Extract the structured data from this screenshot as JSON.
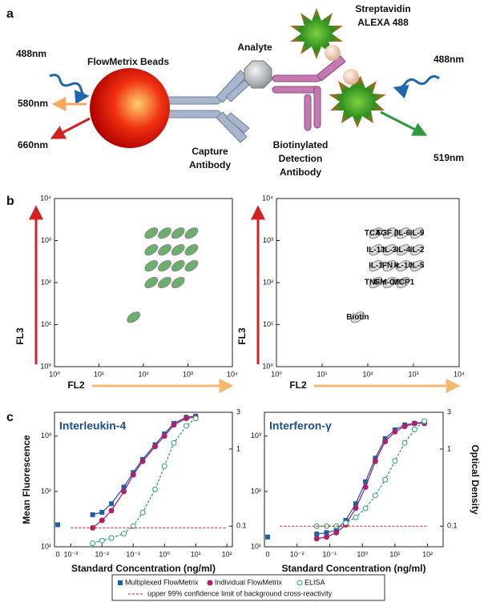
{
  "panel_a": {
    "label": "a",
    "laser_left": "488nm",
    "beads": "FlowMetrix Beads",
    "emit_580": "580nm",
    "emit_660": "660nm",
    "capture": [
      "Capture",
      "Antibody"
    ],
    "analyte": "Analyte",
    "streptavidin": [
      "Streptavidin",
      "ALEXA 488"
    ],
    "detection": [
      "Biotinylated",
      "Detection",
      "Antibody"
    ],
    "laser_right": "488nm",
    "emit_519": "519nm"
  },
  "panel_b": {
    "label": "b"
  },
  "panel_c": {
    "label": "c"
  },
  "chart_data": [
    {
      "type": "scatter",
      "xlabel": "FL2",
      "ylabel": "FL3",
      "xscale": "log",
      "yscale": "log",
      "color": "#2e8b2e",
      "x": [
        150,
        300,
        600,
        1200,
        150,
        300,
        600,
        1200,
        150,
        300,
        600,
        1200,
        150,
        300,
        600,
        60
      ],
      "y": [
        1500,
        1500,
        1500,
        1500,
        600,
        600,
        600,
        600,
        250,
        250,
        250,
        250,
        100,
        100,
        100,
        15
      ],
      "xlim": [
        1,
        10000
      ],
      "ylim": [
        1,
        10000
      ],
      "xticks": [
        {
          "value": 1,
          "label": "10⁰"
        },
        {
          "value": 10,
          "label": "10¹"
        },
        {
          "value": 100,
          "label": "10²"
        },
        {
          "value": 1000,
          "label": "10³"
        },
        {
          "value": 10000,
          "label": "10⁴"
        }
      ],
      "yticks": [
        {
          "value": 1,
          "label": "10⁰"
        },
        {
          "value": 10,
          "label": "10¹"
        },
        {
          "value": 100,
          "label": "10²"
        },
        {
          "value": 1000,
          "label": "10³"
        },
        {
          "value": 10000,
          "label": "10⁴"
        }
      ]
    },
    {
      "type": "scatter",
      "xlabel": "FL2",
      "ylabel": "FL3",
      "xscale": "log",
      "yscale": "log",
      "color": "#cccccc",
      "x": [
        150,
        300,
        600,
        1200,
        150,
        300,
        600,
        1200,
        150,
        300,
        600,
        1200,
        150,
        300,
        600,
        60
      ],
      "y": [
        1500,
        1500,
        1500,
        1500,
        600,
        600,
        600,
        600,
        250,
        250,
        250,
        250,
        100,
        100,
        100,
        15
      ],
      "labels": [
        "TCA 3",
        "TGF β1",
        "IL-6",
        "IL-9",
        "IL-13",
        "IL-3",
        "IL-4",
        "IL-2",
        "IL-1",
        "IFN γ",
        "IL-10",
        "IL-5",
        "TNF α",
        "GM-CSF",
        "MCP1",
        "Biotin"
      ],
      "xlim": [
        1,
        10000
      ],
      "ylim": [
        1,
        10000
      ],
      "xticks": [
        {
          "value": 1,
          "label": "10⁰"
        },
        {
          "value": 10,
          "label": "10¹"
        },
        {
          "value": 100,
          "label": "10²"
        },
        {
          "value": 1000,
          "label": "10³"
        },
        {
          "value": 10000,
          "label": "10⁴"
        }
      ],
      "yticks": [
        {
          "value": 1,
          "label": "10⁰"
        },
        {
          "value": 10,
          "label": "10¹"
        },
        {
          "value": 100,
          "label": "10²"
        },
        {
          "value": 1000,
          "label": "10³"
        },
        {
          "value": 10000,
          "label": "10⁴"
        }
      ]
    },
    {
      "type": "line",
      "title": "Interleukin-4",
      "xlabel": "Standard Concentration (ng/ml)",
      "ylabel": "Mean Fluorescence",
      "xscale": "log",
      "yscale": "log",
      "y2scale": "log",
      "zero_label": "0",
      "zero_value": 25,
      "xlim": [
        0.0003,
        150
      ],
      "ylim": [
        10,
        2700
      ],
      "y2lim": [
        0.054,
        3
      ],
      "xticks": [
        {
          "value": 0.001,
          "label": "10⁻³"
        },
        {
          "value": 0.01,
          "label": "10⁻²"
        },
        {
          "value": 0.1,
          "label": "10⁻¹"
        },
        {
          "value": 1,
          "label": "10⁰"
        },
        {
          "value": 10,
          "label": "10¹"
        },
        {
          "value": 100,
          "label": "10²"
        }
      ],
      "yticks": [
        {
          "value": 10,
          "label": "10¹"
        },
        {
          "value": 100,
          "label": "10²"
        },
        {
          "value": 1000,
          "label": "10³"
        }
      ],
      "y2ticks": [
        0.1,
        1,
        3
      ],
      "series": [
        {
          "name": "Multiplexed FlowMetrix",
          "color": "#1f5fa8",
          "marker": "square",
          "axis": "y",
          "x": [
            0.005,
            0.01,
            0.02,
            0.05,
            0.1,
            0.2,
            0.5,
            1,
            2,
            5,
            10
          ],
          "values": [
            38,
            42,
            60,
            120,
            220,
            380,
            700,
            1100,
            1700,
            2200,
            2300
          ]
        },
        {
          "name": "Individual FlowMetrix",
          "color": "#b0206a",
          "marker": "circle",
          "axis": "y",
          "x": [
            0.005,
            0.01,
            0.02,
            0.05,
            0.1,
            0.2,
            0.5,
            1,
            2,
            5,
            10
          ],
          "values": [
            22,
            30,
            45,
            100,
            200,
            350,
            650,
            1000,
            1600,
            2100,
            2200
          ]
        },
        {
          "name": "ELISA",
          "color": "#2e9e7a",
          "marker": "open-circle",
          "axis": "y2",
          "x": [
            0.005,
            0.01,
            0.02,
            0.05,
            0.1,
            0.2,
            0.5,
            1,
            2,
            5,
            10
          ],
          "values": [
            0.06,
            0.065,
            0.07,
            0.08,
            0.1,
            0.15,
            0.3,
            0.6,
            1.2,
            2,
            2.5
          ]
        },
        {
          "name": "upper 99% confidence limit of background cross-reactivity",
          "color": "#cc2222",
          "marker": "dash",
          "axis": "y2",
          "x": [
            0.001,
            100
          ],
          "values": [
            0.095,
            0.095
          ]
        }
      ]
    },
    {
      "type": "line",
      "title": "Interferon-γ",
      "xlabel": "Standard Concentration (ng/ml)",
      "y2label": "Optical Density",
      "xscale": "log",
      "yscale": "log",
      "y2scale": "log",
      "zero_label": "0",
      "zero_value": 15,
      "xlim": [
        0.001,
        300
      ],
      "ylim": [
        10,
        2700
      ],
      "y2lim": [
        0.054,
        3
      ],
      "xticks": [
        {
          "value": 0.01,
          "label": "10⁻²"
        },
        {
          "value": 0.1,
          "label": "10⁻¹"
        },
        {
          "value": 1,
          "label": "10⁰"
        },
        {
          "value": 10,
          "label": "10¹"
        },
        {
          "value": 100,
          "label": "10²"
        }
      ],
      "yticks": [
        {
          "value": 10,
          "label": "10¹"
        },
        {
          "value": 100,
          "label": "10²"
        },
        {
          "value": 1000,
          "label": "10³"
        }
      ],
      "y2ticks": [
        0.1,
        1,
        3
      ],
      "series": [
        {
          "name": "Multiplexed FlowMetrix",
          "color": "#1f5fa8",
          "marker": "square",
          "axis": "y",
          "x": [
            0.04,
            0.08,
            0.16,
            0.31,
            0.63,
            1.25,
            2.5,
            5,
            10,
            20,
            40,
            80
          ],
          "values": [
            17,
            18,
            20,
            30,
            60,
            150,
            400,
            900,
            1300,
            1600,
            1700,
            1800
          ]
        },
        {
          "name": "Individual FlowMetrix",
          "color": "#b0206a",
          "marker": "circle",
          "axis": "y",
          "x": [
            0.04,
            0.08,
            0.16,
            0.31,
            0.63,
            1.25,
            2.5,
            5,
            10,
            20,
            40,
            80
          ],
          "values": [
            14,
            15,
            18,
            25,
            50,
            120,
            350,
            800,
            1200,
            1500,
            1700,
            1700
          ]
        },
        {
          "name": "ELISA",
          "color": "#2e9e7a",
          "marker": "open-circle",
          "axis": "y2",
          "x": [
            0.04,
            0.08,
            0.16,
            0.31,
            0.63,
            1.25,
            2.5,
            5,
            10,
            20,
            40,
            80
          ],
          "values": [
            0.1,
            0.1,
            0.1,
            0.11,
            0.13,
            0.17,
            0.25,
            0.4,
            0.7,
            1.2,
            1.8,
            2.3
          ]
        },
        {
          "name": "upper 99% confidence limit of background cross-reactivity",
          "color": "#cc2222",
          "marker": "dash",
          "axis": "y2",
          "x": [
            0.003,
            100
          ],
          "values": [
            0.1,
            0.1
          ]
        }
      ]
    }
  ]
}
